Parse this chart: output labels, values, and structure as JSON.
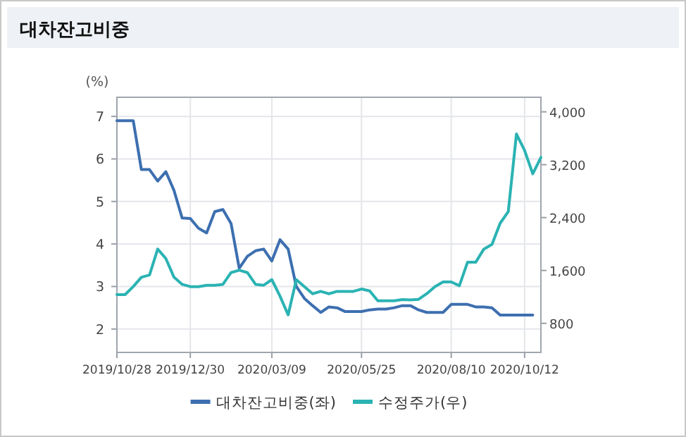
{
  "chart_data": {
    "type": "line",
    "title": "대차잔고비중",
    "ylabel": "(%)",
    "x": [
      "2019-10-28",
      "2019-11-04",
      "2019-11-11",
      "2019-11-18",
      "2019-11-25",
      "2019-12-02",
      "2019-12-09",
      "2019-12-16",
      "2019-12-23",
      "2019-12-30",
      "2020-01-06",
      "2020-01-13",
      "2020-01-20",
      "2020-01-27",
      "2020-02-03",
      "2020-02-10",
      "2020-02-17",
      "2020-02-24",
      "2020-03-02",
      "2020-03-09",
      "2020-03-16",
      "2020-03-23",
      "2020-03-30",
      "2020-04-06",
      "2020-04-13",
      "2020-04-20",
      "2020-04-27",
      "2020-05-04",
      "2020-05-11",
      "2020-05-18",
      "2020-05-25",
      "2020-06-01",
      "2020-06-08",
      "2020-06-15",
      "2020-06-22",
      "2020-06-29",
      "2020-07-06",
      "2020-07-13",
      "2020-07-20",
      "2020-07-27",
      "2020-08-03",
      "2020-08-10",
      "2020-08-17",
      "2020-08-24",
      "2020-08-31",
      "2020-09-07",
      "2020-09-14",
      "2020-09-21",
      "2020-09-28",
      "2020-10-05",
      "2020-10-12",
      "2020-10-19",
      "2020-10-26"
    ],
    "series": [
      {
        "name": "대차잔고비중(좌)",
        "color": "#3d6fb0",
        "values": [
          6.9,
          6.9,
          6.9,
          5.75,
          5.75,
          5.48,
          5.7,
          5.26,
          4.61,
          4.6,
          4.37,
          4.26,
          4.76,
          4.81,
          4.48,
          3.43,
          3.71,
          3.84,
          3.88,
          3.6,
          4.1,
          3.88,
          3.0,
          2.72,
          2.55,
          2.39,
          2.52,
          2.5,
          2.41,
          2.41,
          2.41,
          2.45,
          2.47,
          2.47,
          2.5,
          2.55,
          2.55,
          2.45,
          2.39,
          2.39,
          2.39,
          2.58,
          2.58,
          2.58,
          2.52,
          2.52,
          2.5,
          2.33,
          2.33,
          2.33,
          2.33,
          2.33,
          null
        ]
      },
      {
        "name": "수정주가(우)",
        "color": "#2bb3b3",
        "axis": "y2",
        "values": [
          1234,
          1234,
          1355,
          1497,
          1532,
          1923,
          1781,
          1497,
          1390,
          1355,
          1355,
          1376,
          1376,
          1390,
          1568,
          1603,
          1568,
          1390,
          1376,
          1461,
          1212,
          928,
          1461,
          1355,
          1248,
          1283,
          1248,
          1283,
          1283,
          1283,
          1319,
          1290,
          1141,
          1141,
          1141,
          1160,
          1155,
          1163,
          1248,
          1355,
          1426,
          1426,
          1369,
          1724,
          1724,
          1923,
          1994,
          2314,
          2492,
          3665,
          3416,
          3061,
          3310
        ]
      }
    ],
    "xlim": [
      "2019-10-28",
      "2020-10-26"
    ],
    "xticks": [
      {
        "value": "2019-10-28",
        "label": "2019/10/28"
      },
      {
        "value": "2019-12-30",
        "label": "2019/12/30"
      },
      {
        "value": "2020-03-09",
        "label": "2020/03/09"
      },
      {
        "value": "2020-05-25",
        "label": "2020/05/25"
      },
      {
        "value": "2020-08-10",
        "label": "2020/08/10"
      },
      {
        "value": "2020-10-12",
        "label": "2020/10/12"
      }
    ],
    "ylim": [
      1.45,
      7.45
    ],
    "yticks": [
      2,
      3,
      4,
      5,
      6,
      7
    ],
    "y2lim": [
      360,
      4220
    ],
    "y2ticks": [
      800,
      {
        "value": 1600,
        "label": "1,600"
      },
      {
        "value": 2400,
        "label": "2,400"
      },
      {
        "value": 3200,
        "label": "3,200"
      },
      {
        "value": 4000,
        "label": "4,000"
      }
    ],
    "grid": true,
    "legend": "bottom"
  }
}
